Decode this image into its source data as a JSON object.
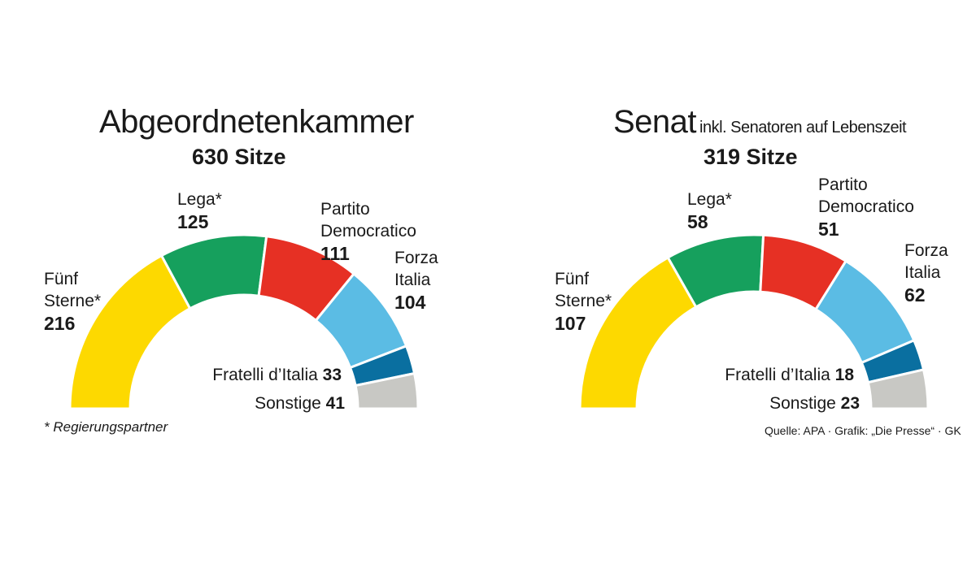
{
  "chart_data": [
    {
      "type": "semicircle-donut",
      "title": "Abgeordnetenkammer",
      "subtitle": "630 Sitze",
      "total": 630,
      "series": [
        {
          "name": "Fünf Sterne*",
          "value": 216,
          "color": "#FDD900"
        },
        {
          "name": "Lega*",
          "value": 125,
          "color": "#16A05D"
        },
        {
          "name": "Partito Democratico",
          "value": 111,
          "color": "#E63024"
        },
        {
          "name": "Forza Italia",
          "value": 104,
          "color": "#5BBCE4"
        },
        {
          "name": "Fratelli d’Italia",
          "value": 33,
          "color": "#0A6FA0"
        },
        {
          "name": "Sonstige",
          "value": 41,
          "color": "#C8C8C4"
        }
      ],
      "labels": [
        {
          "lines": [
            "Fünf",
            "Sterne*"
          ],
          "value": "216"
        },
        {
          "lines": [
            "Lega*"
          ],
          "value": "125"
        },
        {
          "lines": [
            "Partito",
            "Democratico"
          ],
          "value": "111"
        },
        {
          "lines": [
            "Forza",
            "Italia"
          ],
          "value": "104"
        },
        {
          "lines": [
            "Fratelli d’Italia"
          ],
          "value": "33",
          "inline": true
        },
        {
          "lines": [
            "Sonstige"
          ],
          "value": "41",
          "inline": true
        }
      ],
      "footnote": "* Regierungspartner"
    },
    {
      "type": "semicircle-donut",
      "title": "Senat",
      "title_suffix": "inkl. Senatoren auf Lebenszeit",
      "subtitle": "319 Sitze",
      "total": 319,
      "series": [
        {
          "name": "Fünf Sterne*",
          "value": 107,
          "color": "#FDD900"
        },
        {
          "name": "Lega*",
          "value": 58,
          "color": "#16A05D"
        },
        {
          "name": "Partito Democratico",
          "value": 51,
          "color": "#E63024"
        },
        {
          "name": "Forza Italia",
          "value": 62,
          "color": "#5BBCE4"
        },
        {
          "name": "Fratelli d’Italia",
          "value": 18,
          "color": "#0A6FA0"
        },
        {
          "name": "Sonstige",
          "value": 23,
          "color": "#C8C8C4"
        }
      ],
      "labels": [
        {
          "lines": [
            "Fünf",
            "Sterne*"
          ],
          "value": "107"
        },
        {
          "lines": [
            "Lega*"
          ],
          "value": "58"
        },
        {
          "lines": [
            "Partito",
            "Democratico"
          ],
          "value": "51"
        },
        {
          "lines": [
            "Forza",
            "Italia"
          ],
          "value": "62"
        },
        {
          "lines": [
            "Fratelli d’Italia"
          ],
          "value": "18",
          "inline": true
        },
        {
          "lines": [
            "Sonstige"
          ],
          "value": "23",
          "inline": true
        }
      ],
      "source": "Quelle: APA · Grafik: „Die Presse“ · GK"
    }
  ]
}
